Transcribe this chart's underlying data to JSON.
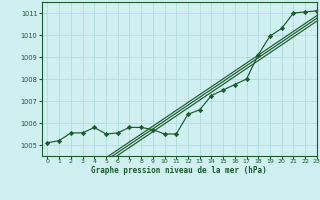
{
  "background_color": "#d0eff0",
  "grid_color": "#a8d8d8",
  "line_color": "#1a5c2a",
  "marker_color": "#1a5c2a",
  "title": "Graphe pression niveau de la mer (hPa)",
  "xlim": [
    -0.5,
    23
  ],
  "ylim": [
    1004.5,
    1011.5
  ],
  "yticks": [
    1005,
    1006,
    1007,
    1008,
    1009,
    1010,
    1011
  ],
  "xticks": [
    0,
    1,
    2,
    3,
    4,
    5,
    6,
    7,
    8,
    9,
    10,
    11,
    12,
    13,
    14,
    15,
    16,
    17,
    18,
    19,
    20,
    21,
    22,
    23
  ],
  "hourly_pressure": [
    1005.1,
    1005.2,
    1005.55,
    1005.55,
    1005.8,
    1005.5,
    1005.55,
    1005.8,
    1005.8,
    1005.7,
    1005.5,
    1005.5,
    1006.4,
    1006.6,
    1007.25,
    1007.5,
    1007.75,
    1008.0,
    1009.1,
    1009.95,
    1010.3,
    1011.0,
    1011.05,
    1011.1
  ],
  "trend_x_start": 5,
  "trend_offsets": [
    0.0,
    -0.12,
    -0.25
  ]
}
